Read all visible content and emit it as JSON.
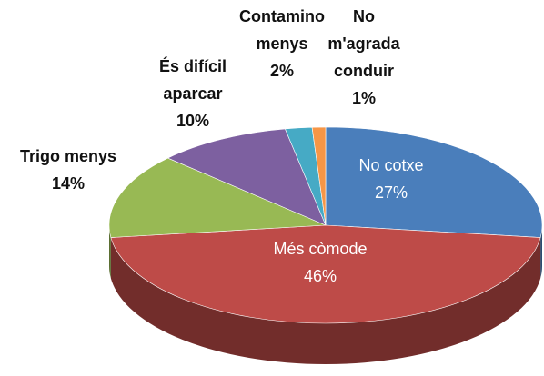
{
  "chart_data": {
    "type": "pie3d",
    "categories": [
      "No cotxe",
      "Més còmode",
      "Trigo menys",
      "És difícil aparcar",
      "Contamino menys",
      "No m'agrada conduir"
    ],
    "values": [
      27,
      46,
      14,
      10,
      2,
      1
    ],
    "value_labels": [
      "27%",
      "46%",
      "14%",
      "10%",
      "2%",
      "1%"
    ],
    "colors": [
      "#4a7ebb",
      "#be4b48",
      "#98b954",
      "#7d60a0",
      "#46aac5",
      "#f79646"
    ]
  }
}
